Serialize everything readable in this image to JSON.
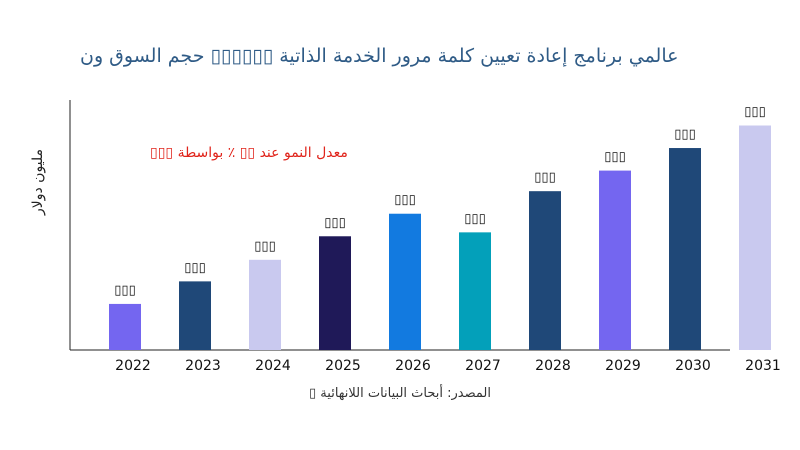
{
  "chart_data": {
    "type": "bar",
    "title": "عالمي برنامج إعادة تعيين كلمة مرور الخدمة الذاتية ▯▯▯▯▯▯ حجم السوق ون",
    "ylabel": "مليون دولار",
    "annotation": "معدل النمو عند ▯▯ ٪ بواسطة ▯▯▯",
    "source": "المصدر: أبحاث البيانات اللانهائية ▯",
    "categories": [
      "2022",
      "2023",
      "2024",
      "2025",
      "2026",
      "2027",
      "2028",
      "2029",
      "2030",
      "2031"
    ],
    "values": [
      47,
      70,
      92,
      116,
      139,
      120,
      162,
      183,
      206,
      229
    ],
    "data_labels": [
      "▯▯▯",
      "▯▯▯",
      "▯▯▯",
      "▯▯▯",
      "▯▯▯",
      "▯▯▯",
      "▯▯▯",
      "▯▯▯",
      "▯▯▯",
      "▯▯▯"
    ],
    "colors": [
      "#7466f0",
      "#1f4878",
      "#c9c9ef",
      "#1f1958",
      "#127ae0",
      "#03a0ba",
      "#1f4878",
      "#7466f0",
      "#1f4878",
      "#c9c9ef"
    ],
    "ylim": [
      0,
      255
    ],
    "grid": false
  }
}
